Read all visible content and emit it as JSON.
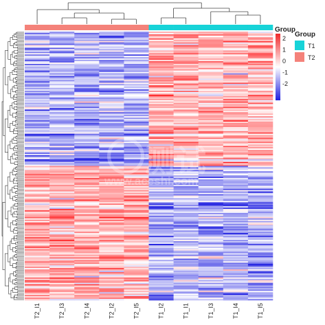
{
  "chart_data": {
    "type": "heatmap",
    "title": "",
    "xlabel": "",
    "ylabel": "",
    "columns": [
      "T2_I1",
      "T2_I3",
      "T2_I4",
      "T2_I2",
      "T2_I5",
      "T1_I2",
      "T1_I1",
      "T1_I3",
      "T1_I4",
      "T1_I5"
    ],
    "column_groups": [
      "T2",
      "T2",
      "T2",
      "T2",
      "T2",
      "T1",
      "T1",
      "T1",
      "T1",
      "T1"
    ],
    "row_count": 200,
    "row_blocks": [
      {
        "rows": "1-100",
        "T2_mean": -0.9,
        "T1_mean": 0.9
      },
      {
        "rows": "101-200",
        "T2_mean": 0.9,
        "T1_mean": -0.9
      }
    ],
    "color_scale": {
      "title": "Group",
      "ticks": [
        "2",
        "1",
        "0",
        "-1",
        "-2"
      ],
      "range": [
        -2.5,
        2.5
      ],
      "low_color": "#1f1fe0",
      "mid_color": "#ffffff",
      "high_color": "#f0282a"
    },
    "group_legend": {
      "title": "Group",
      "items": [
        {
          "label": "T1",
          "color": "#17d3d8"
        },
        {
          "label": "T2",
          "color": "#f4827a"
        }
      ]
    },
    "dendrogram": {
      "columns": true,
      "rows": true
    }
  },
  "watermark": {
    "text": "测试",
    "url": "www.aceshi.com"
  }
}
